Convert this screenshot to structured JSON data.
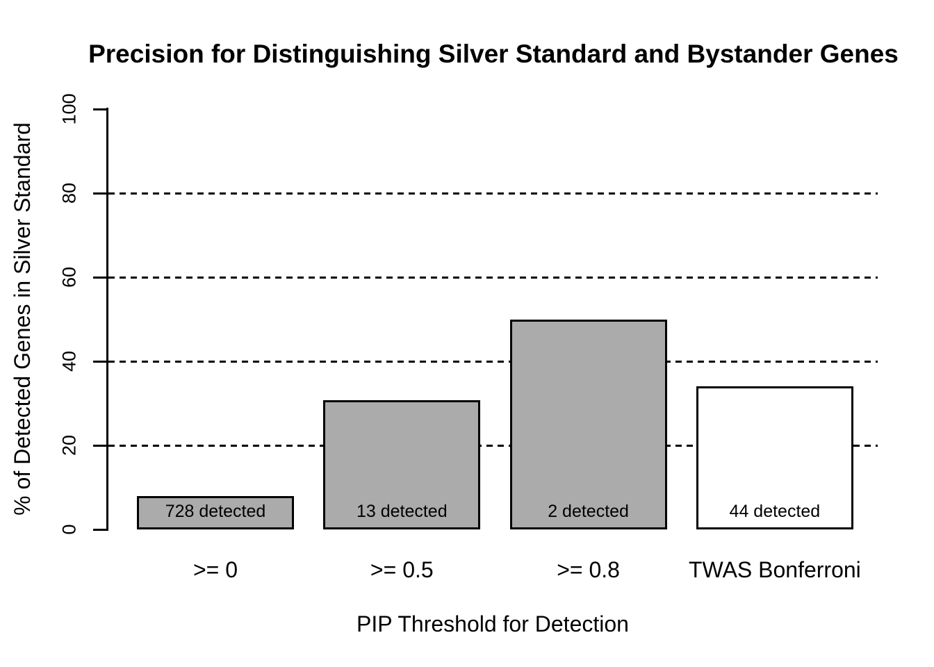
{
  "chart_data": {
    "type": "bar",
    "title": "Precision for Distinguishing Silver Standard and Bystander Genes",
    "xlabel": "PIP Threshold for Detection",
    "ylabel": "% of Detected Genes in Silver Standard",
    "categories": [
      ">= 0",
      ">= 0.5",
      ">= 0.8",
      "TWAS Bonferroni"
    ],
    "values": [
      8,
      30.8,
      50,
      34.1
    ],
    "bar_labels": [
      "728 detected",
      "13 detected",
      "2 detected",
      "44 detected"
    ],
    "bar_fills": [
      "#ababab",
      "#ababab",
      "#ababab",
      "#ffffff"
    ],
    "bar_border_color": "#000000",
    "yticks": [
      0,
      20,
      40,
      60,
      80,
      100
    ],
    "gridlines": [
      20,
      40,
      60,
      80
    ],
    "gridline_style": "dashed",
    "ylim": [
      0,
      100
    ],
    "grid": "horizontal-dashed",
    "legend_position": "none",
    "background_color": "#ffffff",
    "text_color": "#000000"
  }
}
